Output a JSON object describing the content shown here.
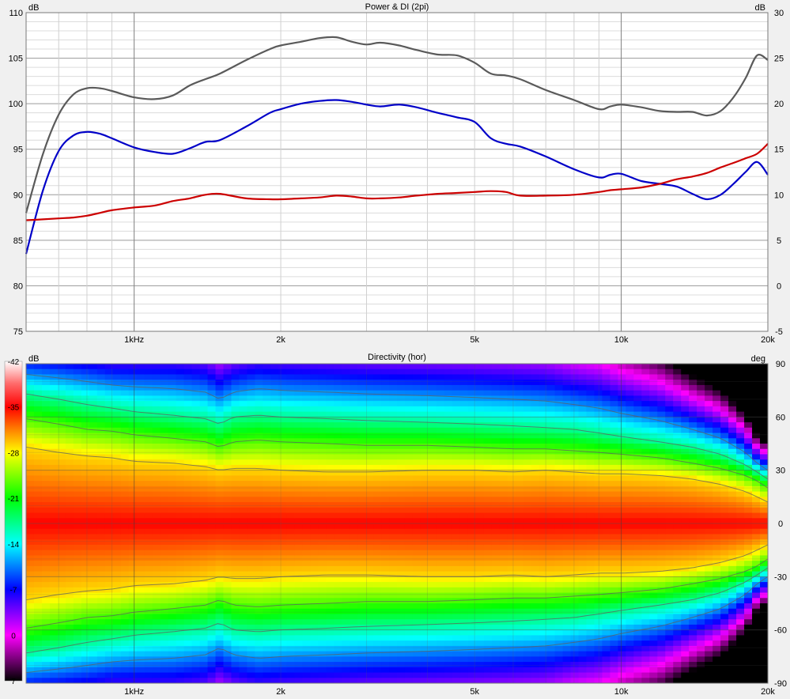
{
  "chart_data": [
    {
      "type": "line",
      "title": "Power & DI (2pi)",
      "left_unit": "dB",
      "right_unit": "dB",
      "x_scale": "log",
      "xlim": [
        600,
        20000
      ],
      "x_ticks": [
        {
          "value": 1000,
          "label": "1kHz"
        },
        {
          "value": 2000,
          "label": "2k"
        },
        {
          "value": 5000,
          "label": "5k"
        },
        {
          "value": 10000,
          "label": "10k"
        },
        {
          "value": 20000,
          "label": "20k"
        }
      ],
      "y_left": {
        "lim": [
          75,
          110
        ],
        "ticks": [
          75,
          80,
          85,
          90,
          95,
          100,
          105,
          110
        ]
      },
      "y_right": {
        "lim": [
          -5,
          30
        ],
        "ticks": [
          -5,
          0,
          5,
          10,
          15,
          20,
          25,
          30
        ]
      },
      "grid": true,
      "series": [
        {
          "axis": "left",
          "color": "#5a5a5a",
          "x": [
            600,
            650,
            700,
            750,
            800,
            850,
            900,
            1000,
            1100,
            1200,
            1300,
            1400,
            1500,
            1700,
            1900,
            2000,
            2200,
            2400,
            2600,
            2800,
            3000,
            3200,
            3500,
            3800,
            4200,
            4600,
            5000,
            5400,
            5800,
            6200,
            7000,
            8000,
            9000,
            9500,
            10000,
            11000,
            12000,
            13000,
            14000,
            15000,
            16000,
            17000,
            18000,
            19000,
            20000
          ],
          "y": [
            88,
            94.5,
            98.8,
            101,
            101.7,
            101.7,
            101.4,
            100.7,
            100.5,
            100.9,
            102,
            102.7,
            103.3,
            104.8,
            106,
            106.4,
            106.8,
            107.2,
            107.3,
            106.8,
            106.5,
            106.7,
            106.4,
            105.9,
            105.4,
            105.3,
            104.5,
            103.3,
            103.1,
            102.7,
            101.5,
            100.4,
            99.4,
            99.7,
            99.9,
            99.6,
            99.2,
            99.1,
            99.1,
            98.7,
            99.2,
            100.7,
            102.8,
            105.3,
            104.8
          ]
        },
        {
          "axis": "left",
          "color": "#0000c8",
          "x": [
            600,
            650,
            700,
            750,
            800,
            850,
            900,
            1000,
            1100,
            1200,
            1300,
            1400,
            1500,
            1700,
            1900,
            2000,
            2200,
            2400,
            2600,
            2800,
            3000,
            3200,
            3500,
            3800,
            4200,
            4600,
            5000,
            5400,
            5800,
            6200,
            7000,
            8000,
            9000,
            9500,
            10000,
            11000,
            12000,
            13000,
            14000,
            15000,
            16000,
            17000,
            18000,
            19000,
            20000
          ],
          "y": [
            83.5,
            90.5,
            94.8,
            96.5,
            96.9,
            96.7,
            96.2,
            95.2,
            94.7,
            94.5,
            95.1,
            95.8,
            96,
            97.5,
            99,
            99.4,
            100,
            100.3,
            100.4,
            100.2,
            99.9,
            99.7,
            99.9,
            99.6,
            99,
            98.5,
            98,
            96.2,
            95.6,
            95.3,
            94.2,
            92.8,
            91.9,
            92.2,
            92.3,
            91.5,
            91.2,
            90.9,
            90.1,
            89.5,
            90,
            91.2,
            92.5,
            93.6,
            92.2
          ]
        },
        {
          "axis": "right",
          "color": "#cc0000",
          "x": [
            600,
            650,
            700,
            750,
            800,
            850,
            900,
            1000,
            1100,
            1200,
            1300,
            1400,
            1500,
            1700,
            1900,
            2000,
            2200,
            2400,
            2600,
            2800,
            3000,
            3200,
            3500,
            3800,
            4200,
            4600,
            5000,
            5400,
            5800,
            6200,
            7000,
            8000,
            9000,
            9500,
            10000,
            11000,
            12000,
            13000,
            14000,
            15000,
            16000,
            17000,
            18000,
            19000,
            20000
          ],
          "y": [
            7.2,
            7.3,
            7.4,
            7.5,
            7.7,
            8,
            8.3,
            8.6,
            8.8,
            9.3,
            9.6,
            10,
            10.1,
            9.6,
            9.5,
            9.5,
            9.6,
            9.7,
            9.9,
            9.8,
            9.6,
            9.6,
            9.7,
            9.9,
            10.1,
            10.2,
            10.3,
            10.4,
            10.3,
            9.9,
            9.9,
            10,
            10.3,
            10.5,
            10.6,
            10.8,
            11.2,
            11.7,
            12,
            12.4,
            13,
            13.5,
            14,
            14.5,
            15.6
          ]
        }
      ]
    },
    {
      "type": "heatmap",
      "title": "Directivity (hor)",
      "left_unit": "dB",
      "right_unit": "deg",
      "x_scale": "log",
      "xlim": [
        600,
        20000
      ],
      "x_ticks": [
        {
          "value": 1000,
          "label": "1kHz"
        },
        {
          "value": 2000,
          "label": "2k"
        },
        {
          "value": 5000,
          "label": "5k"
        },
        {
          "value": 10000,
          "label": "10k"
        },
        {
          "value": 20000,
          "label": "20k"
        }
      ],
      "ylim": [
        -90,
        90
      ],
      "y_ticks": [
        90,
        60,
        30,
        0,
        -30,
        -60,
        -90
      ],
      "colorbar": {
        "range": [
          -42,
          7
        ],
        "ticks": [
          7,
          0,
          -7,
          -14,
          -21,
          -28,
          -35,
          -42
        ]
      },
      "contour_levels_db": [
        -6,
        -12,
        -18,
        -24
      ],
      "beamwidth_contours_deg": {
        "freqs": [
          600,
          700,
          800,
          900,
          1000,
          1200,
          1400,
          1500,
          1600,
          1800,
          2000,
          2500,
          3000,
          4000,
          5000,
          6000,
          7000,
          8000,
          9000,
          10000,
          12000,
          14000,
          16000,
          18000,
          19000,
          20000
        ],
        "levels": [
          {
            "db": -6,
            "angles": [
              43,
              40,
              38,
              37,
              35,
              34,
              32,
              30,
              31,
              31,
              30,
              29,
              29,
              30,
              30,
              29,
              30,
              29,
              28,
              28,
              27,
              25,
              22,
              18,
              15,
              12
            ]
          },
          {
            "db": -12,
            "angles": [
              59,
              56,
              53,
              52,
              50,
              48,
              46,
              43,
              46,
              47,
              46,
              45,
              44,
              44,
              43,
              42,
              42,
              41,
              40,
              39,
              37,
              34,
              31,
              27,
              24,
              20
            ]
          },
          {
            "db": -18,
            "angles": [
              73,
              70,
              67,
              65,
              63,
              61,
              59,
              56,
              60,
              61,
              60,
              59,
              58,
              57,
              56,
              55,
              54,
              53,
              51,
              49,
              46,
              43,
              39,
              33,
              29,
              25
            ]
          },
          {
            "db": -24,
            "angles": [
              84,
              82,
              80,
              78,
              77,
              76,
              74,
              70,
              74,
              76,
              75,
              74,
              73,
              72,
              71,
              70,
              69,
              67,
              65,
              62,
              58,
              53,
              48,
              40,
              34,
              30
            ]
          }
        ]
      }
    }
  ]
}
